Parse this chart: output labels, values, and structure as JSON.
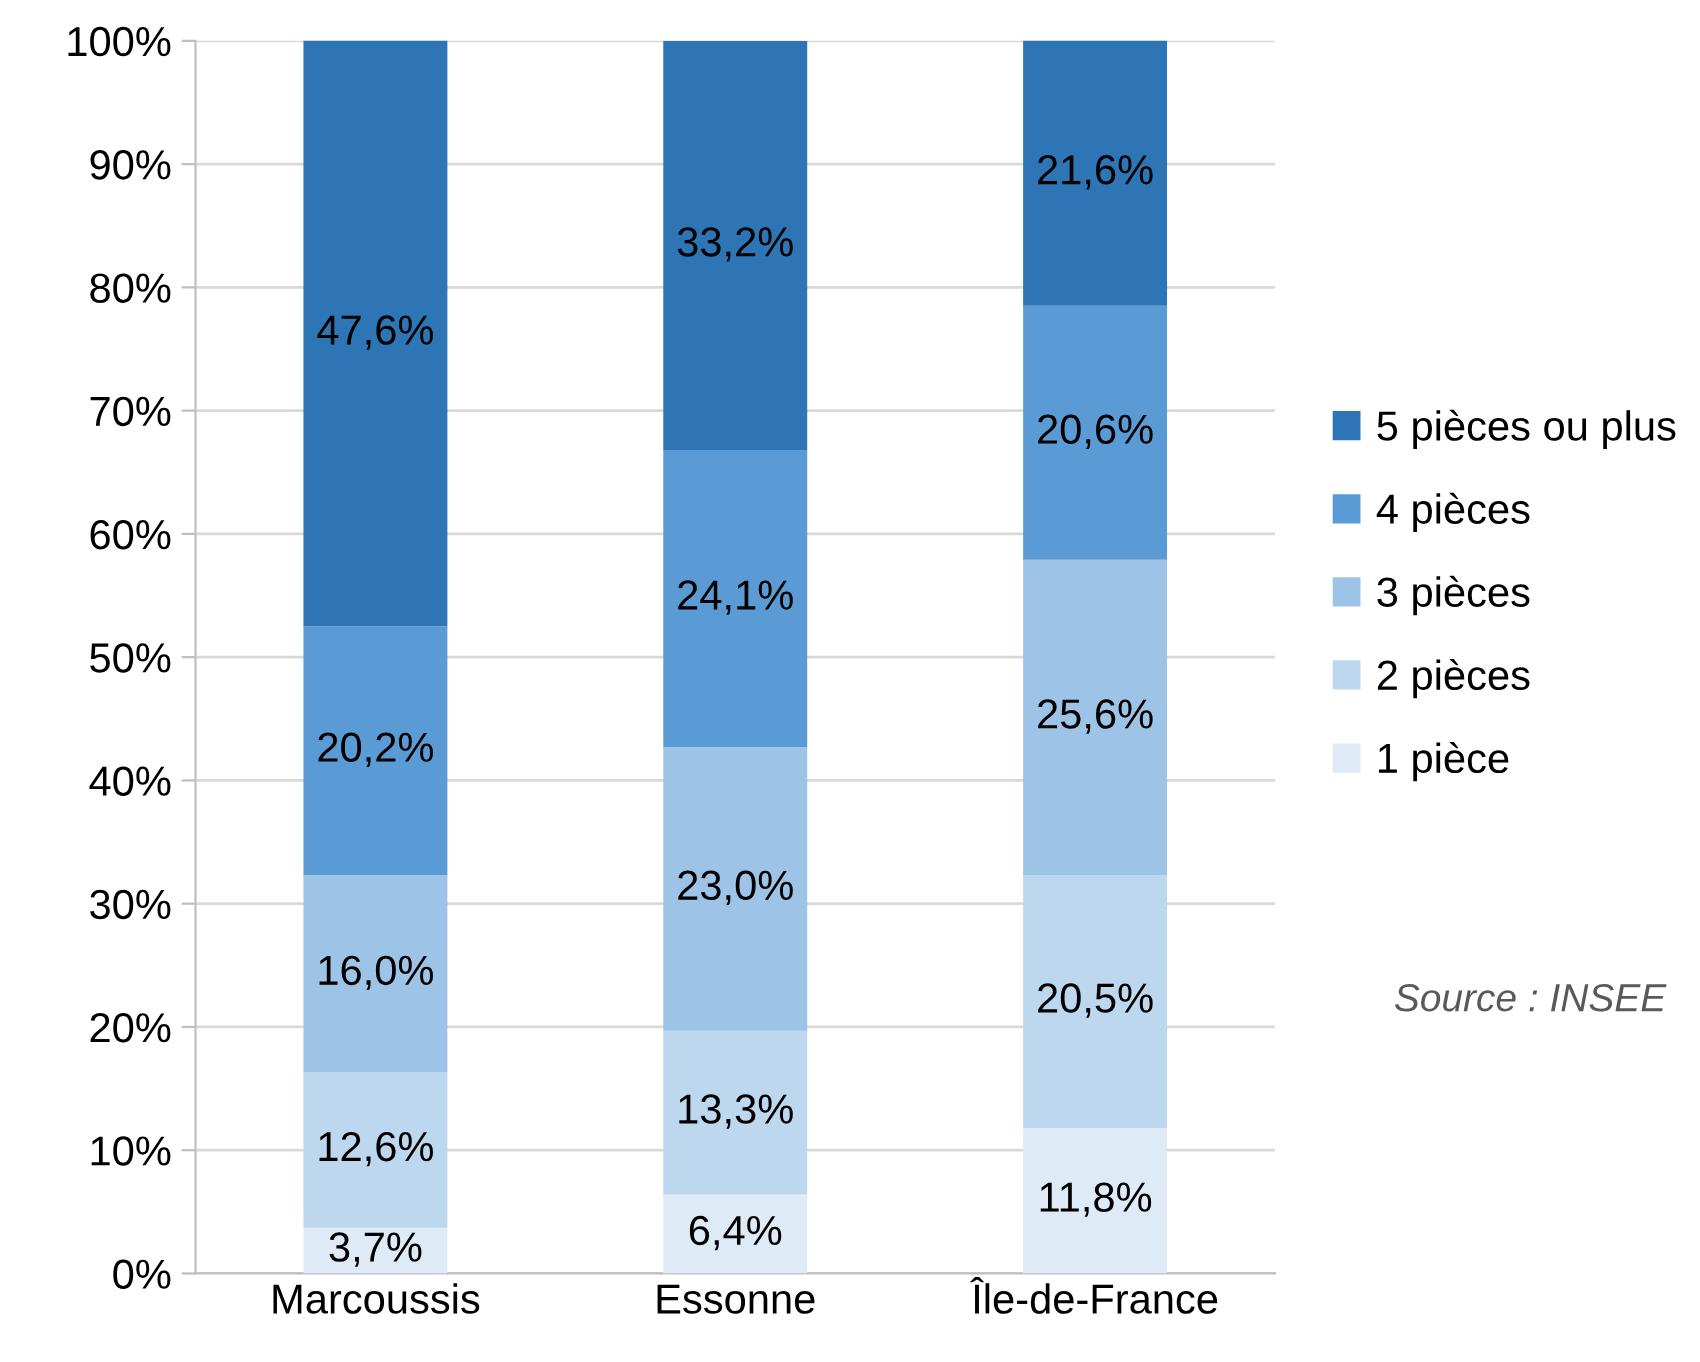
{
  "chart_data": {
    "type": "bar",
    "stacked": true,
    "categories": [
      "Marcoussis",
      "Essonne",
      "Île-de-France"
    ],
    "series": [
      {
        "name": "1 pièce",
        "color": "#deebf7",
        "values": [
          3.7,
          6.4,
          11.8
        ],
        "value_labels": [
          "3,7%",
          "6,4%",
          "11,8%"
        ]
      },
      {
        "name": "2 pièces",
        "color": "#bdd7ee",
        "values": [
          12.6,
          13.3,
          20.5
        ],
        "value_labels": [
          "12,6%",
          "13,3%",
          "20,5%"
        ]
      },
      {
        "name": "3 pièces",
        "color": "#9dc3e6",
        "values": [
          16.0,
          23.0,
          25.6
        ],
        "value_labels": [
          "16,0%",
          "23,0%",
          "25,6%"
        ]
      },
      {
        "name": "4 pièces",
        "color": "#5b9bd5",
        "values": [
          20.2,
          24.1,
          20.6
        ],
        "value_labels": [
          "20,2%",
          "24,1%",
          "20,6%"
        ]
      },
      {
        "name": "5 pièces ou plus",
        "color": "#2e75b6",
        "values": [
          47.6,
          33.2,
          21.6
        ],
        "value_labels": [
          "47,6%",
          "33,2%",
          "21,6%"
        ]
      }
    ],
    "ylim": [
      0,
      100
    ],
    "yticks": [
      {
        "value": 0,
        "label": "0%"
      },
      {
        "value": 10,
        "label": "10%"
      },
      {
        "value": 20,
        "label": "20%"
      },
      {
        "value": 30,
        "label": "30%"
      },
      {
        "value": 40,
        "label": "40%"
      },
      {
        "value": 50,
        "label": "50%"
      },
      {
        "value": 60,
        "label": "60%"
      },
      {
        "value": 70,
        "label": "70%"
      },
      {
        "value": 80,
        "label": "80%"
      },
      {
        "value": 90,
        "label": "90%"
      },
      {
        "value": 100,
        "label": "100%"
      }
    ],
    "grid": "y",
    "legend": "right",
    "annotations": [
      "Source : INSEE"
    ]
  }
}
